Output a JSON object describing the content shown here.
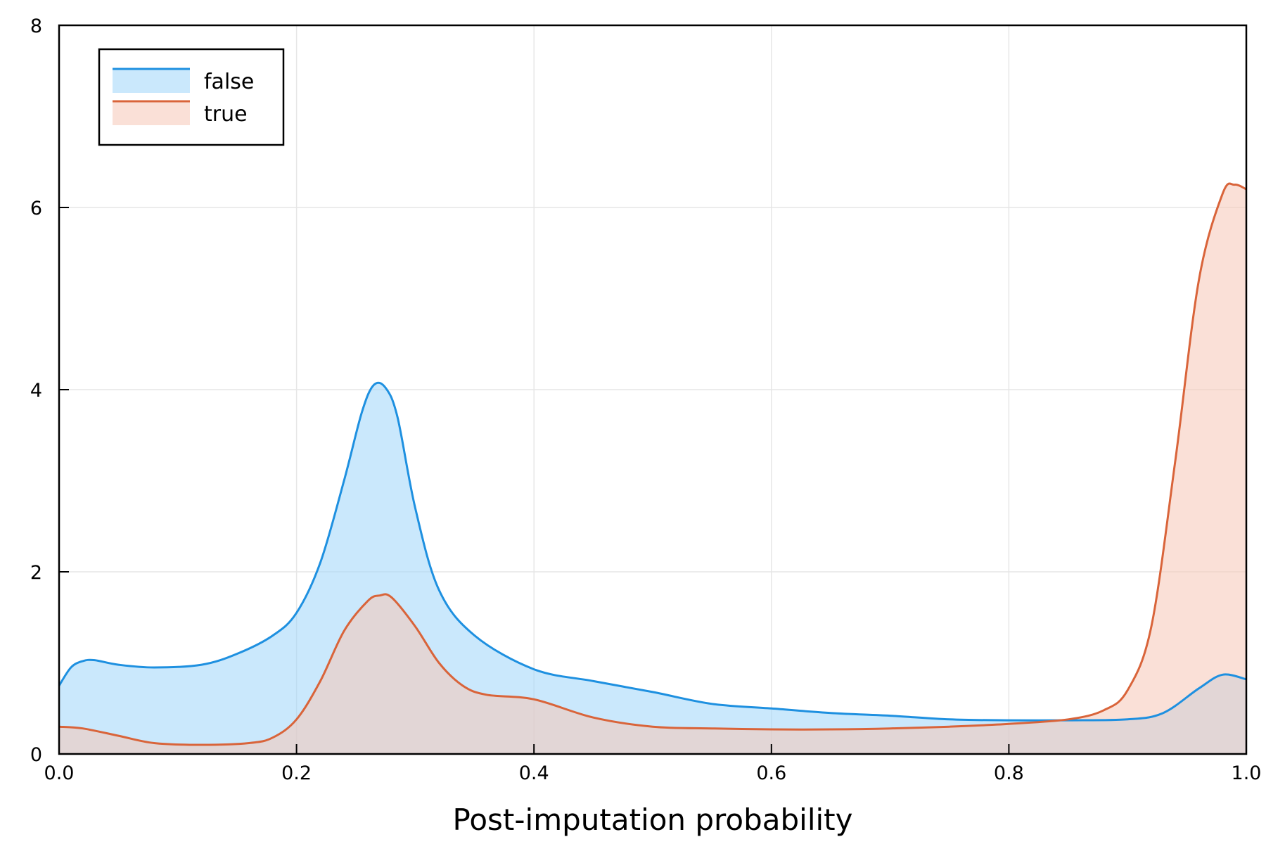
{
  "chart_data": {
    "type": "area",
    "xlabel": "Post-imputation probability",
    "ylabel": "",
    "title": "",
    "xlim": [
      0,
      1
    ],
    "ylim": [
      0,
      8
    ],
    "x_ticks": [
      {
        "value": 0,
        "label": "0.0"
      },
      {
        "value": 0.2,
        "label": "0.2"
      },
      {
        "value": 0.4,
        "label": "0.4"
      },
      {
        "value": 0.6,
        "label": "0.6"
      },
      {
        "value": 0.8,
        "label": "0.8"
      },
      {
        "value": 1,
        "label": "1.0"
      }
    ],
    "y_ticks": [
      {
        "value": 0,
        "label": "0"
      },
      {
        "value": 2,
        "label": "2"
      },
      {
        "value": 4,
        "label": "4"
      },
      {
        "value": 6,
        "label": "6"
      },
      {
        "value": 8,
        "label": "8"
      }
    ],
    "grid": true,
    "legend_position": "top-left",
    "series": [
      {
        "name": "false",
        "line_color": "#1e90e0",
        "fill_color": "#9fd6fa",
        "x": [
          0,
          0.01,
          0.02,
          0.03,
          0.05,
          0.08,
          0.12,
          0.15,
          0.18,
          0.2,
          0.22,
          0.24,
          0.255,
          0.265,
          0.275,
          0.285,
          0.3,
          0.32,
          0.35,
          0.4,
          0.45,
          0.5,
          0.55,
          0.6,
          0.65,
          0.7,
          0.75,
          0.8,
          0.85,
          0.9,
          0.93,
          0.96,
          0.98,
          1
        ],
        "y": [
          0.75,
          0.95,
          1.02,
          1.03,
          0.98,
          0.95,
          0.98,
          1.1,
          1.3,
          1.55,
          2.1,
          3.0,
          3.75,
          4.05,
          4.02,
          3.7,
          2.7,
          1.8,
          1.3,
          0.93,
          0.8,
          0.68,
          0.55,
          0.5,
          0.45,
          0.42,
          0.38,
          0.37,
          0.37,
          0.38,
          0.45,
          0.72,
          0.87,
          0.82
        ]
      },
      {
        "name": "true",
        "line_color": "#d9643a",
        "fill_color": "#f5c6b6",
        "x": [
          0,
          0.02,
          0.05,
          0.08,
          0.12,
          0.16,
          0.18,
          0.2,
          0.22,
          0.24,
          0.26,
          0.27,
          0.28,
          0.3,
          0.32,
          0.34,
          0.36,
          0.4,
          0.45,
          0.5,
          0.55,
          0.6,
          0.65,
          0.7,
          0.75,
          0.8,
          0.85,
          0.88,
          0.9,
          0.92,
          0.94,
          0.96,
          0.98,
          0.99,
          1
        ],
        "y": [
          0.3,
          0.28,
          0.2,
          0.12,
          0.1,
          0.12,
          0.18,
          0.38,
          0.8,
          1.35,
          1.68,
          1.74,
          1.72,
          1.4,
          1.0,
          0.75,
          0.65,
          0.6,
          0.4,
          0.3,
          0.28,
          0.27,
          0.27,
          0.28,
          0.3,
          0.33,
          0.38,
          0.48,
          0.7,
          1.4,
          3.2,
          5.2,
          6.15,
          6.25,
          6.2
        ]
      }
    ]
  }
}
